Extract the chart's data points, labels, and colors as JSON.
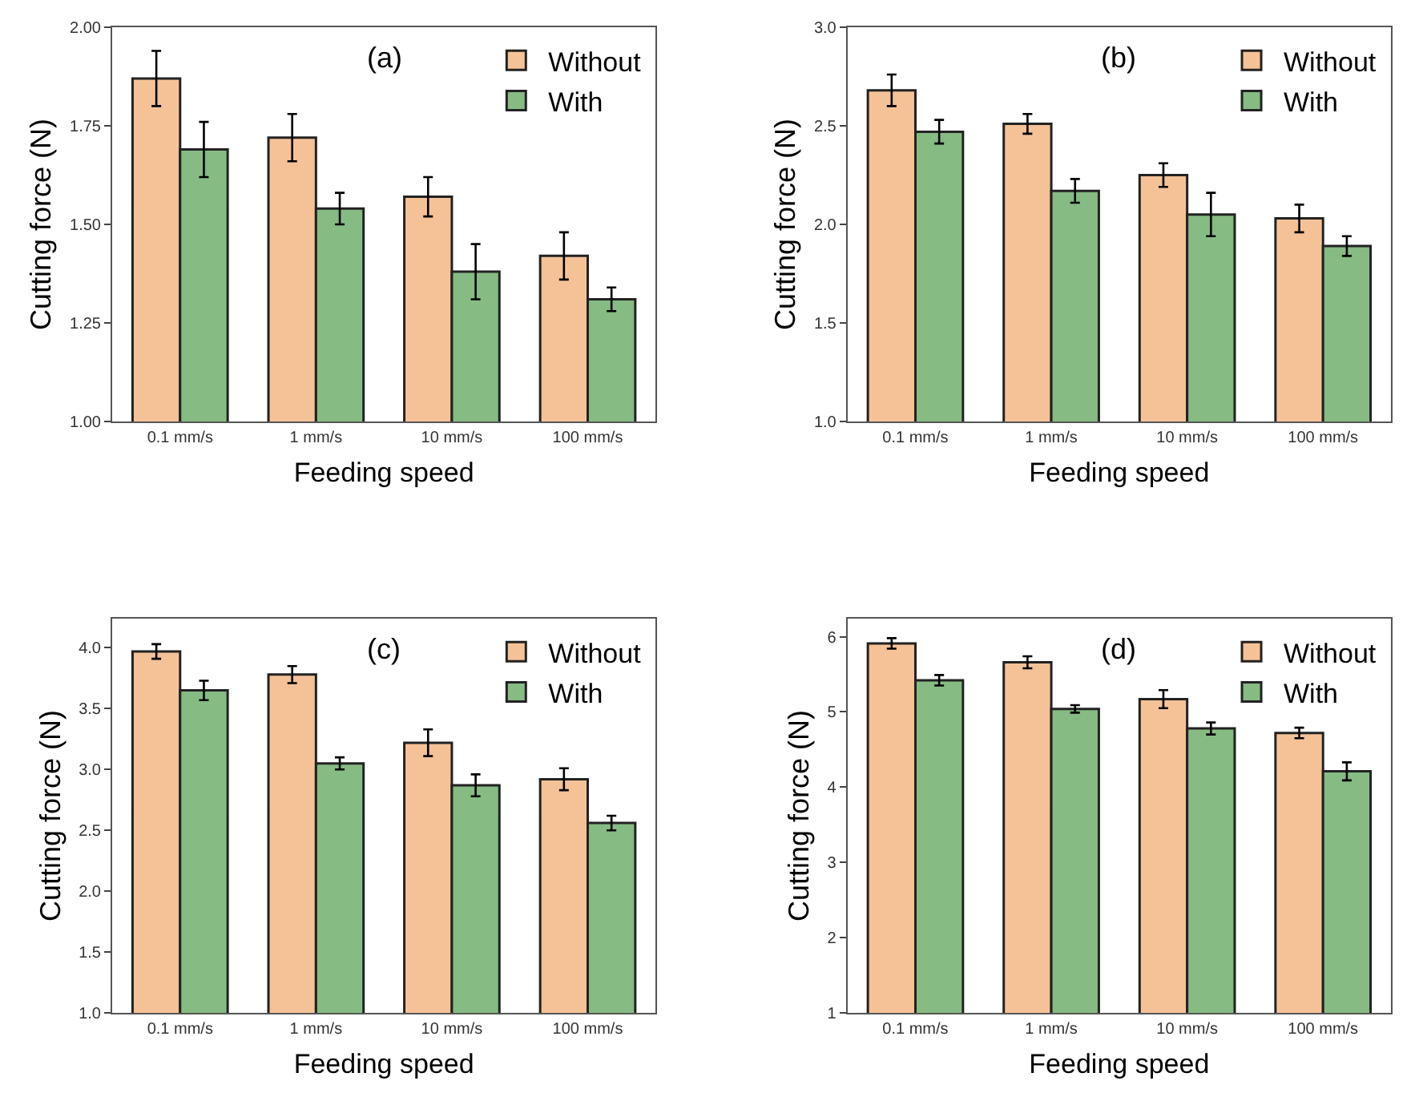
{
  "chart_data": [
    {
      "type": "bar",
      "annotations": [
        "(a)"
      ],
      "xlabel": "Feeding speed",
      "ylabel": "Cutting force (N)",
      "categories": [
        "0.1 mm/s",
        "1 mm/s",
        "10 mm/s",
        "100 mm/s"
      ],
      "series": [
        {
          "name": "Without",
          "color": "#f5c298",
          "values": [
            1.87,
            1.72,
            1.57,
            1.42
          ],
          "errors": [
            0.07,
            0.06,
            0.05,
            0.06
          ]
        },
        {
          "name": "With",
          "color": "#86bb84",
          "values": [
            1.69,
            1.54,
            1.38,
            1.31
          ],
          "errors": [
            0.07,
            0.04,
            0.07,
            0.03
          ]
        }
      ],
      "ylim": [
        1.0,
        2.0
      ],
      "yticks": [
        {
          "value": 1.0,
          "label": "1.00"
        },
        {
          "value": 1.25,
          "label": "1.25"
        },
        {
          "value": 1.5,
          "label": "1.50"
        },
        {
          "value": 1.75,
          "label": "1.75"
        },
        {
          "value": 2.0,
          "label": "2.00"
        }
      ],
      "legend": "top right"
    },
    {
      "type": "bar",
      "annotations": [
        "(b)"
      ],
      "xlabel": "Feeding speed",
      "ylabel": "Cutting force (N)",
      "categories": [
        "0.1 mm/s",
        "1 mm/s",
        "10 mm/s",
        "100 mm/s"
      ],
      "series": [
        {
          "name": "Without",
          "color": "#f5c298",
          "values": [
            2.68,
            2.51,
            2.25,
            2.03
          ],
          "errors": [
            0.08,
            0.05,
            0.06,
            0.07
          ]
        },
        {
          "name": "With",
          "color": "#86bb84",
          "values": [
            2.47,
            2.17,
            2.05,
            1.89
          ],
          "errors": [
            0.06,
            0.06,
            0.11,
            0.05
          ]
        }
      ],
      "ylim": [
        1.0,
        3.0
      ],
      "yticks": [
        {
          "value": 1.0,
          "label": "1.0"
        },
        {
          "value": 1.5,
          "label": "1.5"
        },
        {
          "value": 2.0,
          "label": "2.0"
        },
        {
          "value": 2.5,
          "label": "2.5"
        },
        {
          "value": 3.0,
          "label": "3.0"
        }
      ],
      "legend": "top right"
    },
    {
      "type": "bar",
      "annotations": [
        "(c)"
      ],
      "xlabel": "Feeding speed",
      "ylabel": "Cutting force (N)",
      "categories": [
        "0.1 mm/s",
        "1 mm/s",
        "10 mm/s",
        "100 mm/s"
      ],
      "series": [
        {
          "name": "Without",
          "color": "#f5c298",
          "values": [
            3.97,
            3.78,
            3.22,
            2.92
          ],
          "errors": [
            0.06,
            0.07,
            0.11,
            0.09
          ]
        },
        {
          "name": "With",
          "color": "#86bb84",
          "values": [
            3.65,
            3.05,
            2.87,
            2.56
          ],
          "errors": [
            0.08,
            0.05,
            0.09,
            0.06
          ]
        }
      ],
      "ylim": [
        1.0,
        4.24
      ],
      "yticks": [
        {
          "value": 1.0,
          "label": "1.0"
        },
        {
          "value": 1.5,
          "label": "1.5"
        },
        {
          "value": 2.0,
          "label": "2.0"
        },
        {
          "value": 2.5,
          "label": "2.5"
        },
        {
          "value": 3.0,
          "label": "3.0"
        },
        {
          "value": 3.5,
          "label": "3.5"
        },
        {
          "value": 4.0,
          "label": "4.0"
        }
      ],
      "legend": "top right"
    },
    {
      "type": "bar",
      "annotations": [
        "(d)"
      ],
      "xlabel": "Feeding speed",
      "ylabel": "Cutting force (N)",
      "categories": [
        "0.1 mm/s",
        "1 mm/s",
        "10 mm/s",
        "100 mm/s"
      ],
      "series": [
        {
          "name": "Without",
          "color": "#f5c298",
          "values": [
            5.91,
            5.66,
            5.17,
            4.72
          ],
          "errors": [
            0.07,
            0.08,
            0.12,
            0.07
          ]
        },
        {
          "name": "With",
          "color": "#86bb84",
          "values": [
            5.42,
            5.04,
            4.78,
            4.21
          ],
          "errors": [
            0.07,
            0.05,
            0.08,
            0.12
          ]
        }
      ],
      "ylim": [
        1,
        6.24
      ],
      "yticks": [
        1,
        2,
        3,
        4,
        5,
        6
      ],
      "legend": "top right"
    }
  ]
}
